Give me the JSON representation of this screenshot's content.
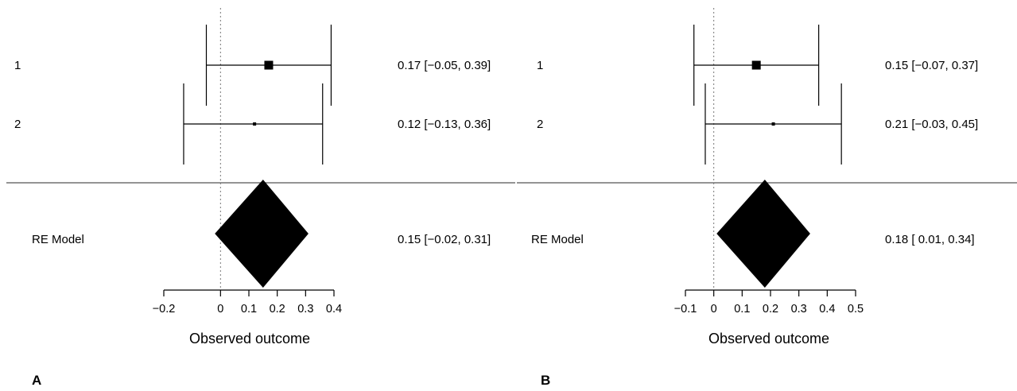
{
  "colors": {
    "ink": "#000000",
    "separator": "#555555",
    "reference": "#777777"
  },
  "chart_data": [
    {
      "type": "forest",
      "panel_label": "A",
      "xlabel": "Observed outcome",
      "xlim": [
        -0.2,
        0.4
      ],
      "xticks": [
        "-0.2",
        "0",
        "0.1",
        "0.2",
        "0.3",
        "0.4"
      ],
      "xtick_values": [
        -0.2,
        0,
        0.1,
        0.2,
        0.3,
        0.4
      ],
      "reference_line": 0,
      "studies": [
        {
          "label": "1",
          "estimate": 0.17,
          "lower": -0.05,
          "upper": 0.39,
          "weight": "large",
          "ci_text": "0.17 [−0.05, 0.39]"
        },
        {
          "label": "2",
          "estimate": 0.12,
          "lower": -0.13,
          "upper": 0.36,
          "weight": "small",
          "ci_text": "0.12 [−0.13, 0.36]"
        }
      ],
      "summary": {
        "label": "RE Model",
        "estimate": 0.15,
        "lower": -0.02,
        "upper": 0.31,
        "ci_text": "0.15 [−0.02, 0.31]"
      }
    },
    {
      "type": "forest",
      "panel_label": "B",
      "xlabel": "Observed outcome",
      "xlim": [
        -0.1,
        0.5
      ],
      "xticks": [
        "-0.1",
        "0",
        "0.1",
        "0.2",
        "0.3",
        "0.4",
        "0.5"
      ],
      "xtick_values": [
        -0.1,
        0,
        0.1,
        0.2,
        0.3,
        0.4,
        0.5
      ],
      "reference_line": 0,
      "studies": [
        {
          "label": "1",
          "estimate": 0.15,
          "lower": -0.07,
          "upper": 0.37,
          "weight": "large",
          "ci_text": "0.15 [−0.07, 0.37]"
        },
        {
          "label": "2",
          "estimate": 0.21,
          "lower": -0.03,
          "upper": 0.45,
          "weight": "small",
          "ci_text": "0.21 [−0.03, 0.45]"
        }
      ],
      "summary": {
        "label": "RE Model",
        "estimate": 0.18,
        "lower": 0.01,
        "upper": 0.34,
        "ci_text": "0.18 [ 0.01, 0.34]"
      }
    }
  ]
}
